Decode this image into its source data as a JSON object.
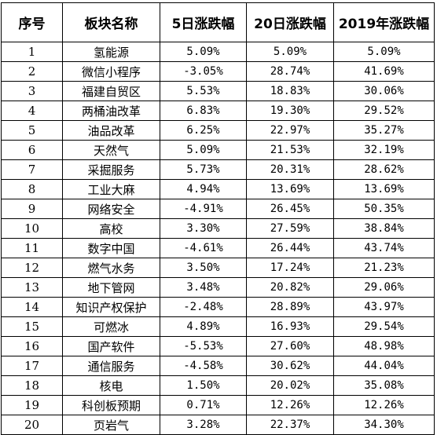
{
  "headers": [
    "序号",
    "板块名称",
    "5日涨跌幅",
    "20日涨跌幅",
    "2019年涨跌幅"
  ],
  "rows": [
    [
      "1",
      "氢能源",
      "5.09%",
      "5.09%",
      "5.09%"
    ],
    [
      "2",
      "微信小程序",
      "-3.05%",
      "28.74%",
      "41.69%"
    ],
    [
      "3",
      "福建自贸区",
      "5.53%",
      "18.83%",
      "30.06%"
    ],
    [
      "4",
      "两桶油改革",
      "6.83%",
      "19.30%",
      "29.52%"
    ],
    [
      "5",
      "油品改革",
      "6.25%",
      "22.97%",
      "35.27%"
    ],
    [
      "6",
      "天然气",
      "5.09%",
      "21.53%",
      "32.19%"
    ],
    [
      "7",
      "采掘服务",
      "5.73%",
      "20.31%",
      "28.62%"
    ],
    [
      "8",
      "工业大麻",
      "4.94%",
      "13.69%",
      "13.69%"
    ],
    [
      "9",
      "网络安全",
      "-4.91%",
      "26.45%",
      "50.35%"
    ],
    [
      "10",
      "高校",
      "3.30%",
      "27.59%",
      "38.84%"
    ],
    [
      "11",
      "数字中国",
      "-4.61%",
      "26.44%",
      "43.74%"
    ],
    [
      "12",
      "燃气水务",
      "3.50%",
      "17.24%",
      "21.23%"
    ],
    [
      "13",
      "地下管网",
      "3.48%",
      "20.82%",
      "29.06%"
    ],
    [
      "14",
      "知识产权保护",
      "-2.48%",
      "28.89%",
      "43.97%"
    ],
    [
      "15",
      "可燃冰",
      "4.89%",
      "16.93%",
      "29.54%"
    ],
    [
      "16",
      "国产软件",
      "-5.53%",
      "27.60%",
      "48.98%"
    ],
    [
      "17",
      "通信服务",
      "-4.58%",
      "30.62%",
      "44.04%"
    ],
    [
      "18",
      "核电",
      "1.50%",
      "20.02%",
      "35.08%"
    ],
    [
      "19",
      "科创板预期",
      "0.71%",
      "12.26%",
      "12.26%"
    ],
    [
      "20",
      "页岩气",
      "3.28%",
      "22.37%",
      "34.30%"
    ]
  ]
}
